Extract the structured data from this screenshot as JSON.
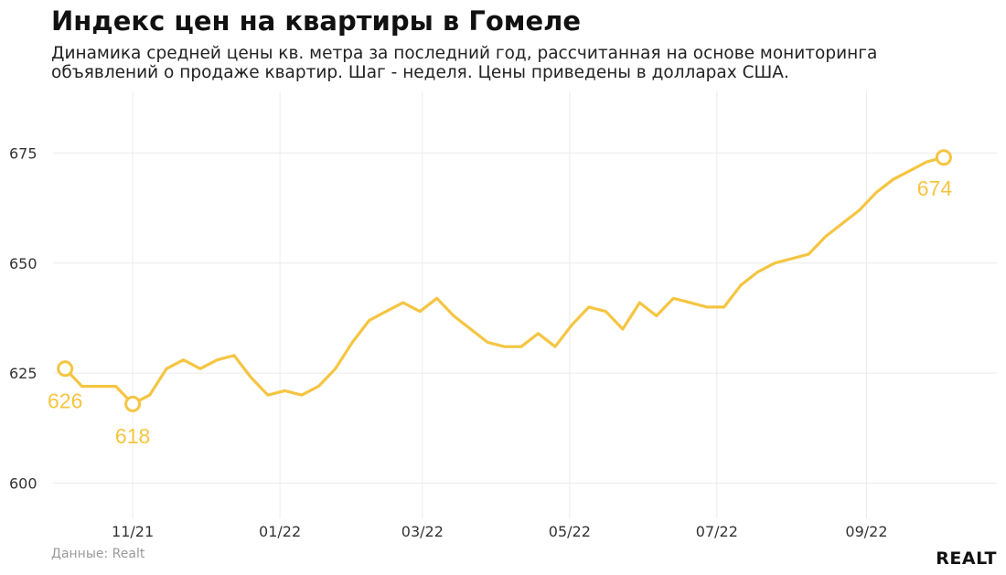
{
  "title": "Индекс цен на квартиры в Гомеле",
  "subtitle": "Динамика средней цены кв. метра за последний год, рассчитанная на основе мониторинга объявлений о продаже квартир. Шаг - неделя. Цены приведены в долларах США.",
  "source": "Данные: Realt",
  "logo": "REALT",
  "colors": {
    "line": "#f5c542",
    "grid": "#ececec",
    "text": "#333333"
  },
  "chart_data": {
    "type": "line",
    "title": "Индекс цен на квартиры в Гомеле",
    "xlabel": "",
    "ylabel": "",
    "ylim": [
      592,
      689
    ],
    "xlim": [
      "2021-09-29",
      "2022-10-25"
    ],
    "grid": true,
    "yticks": [
      600,
      625,
      650,
      675
    ],
    "yticklabels": [
      "600",
      "625",
      "650",
      "675"
    ],
    "xticks": [
      "2021-11-01",
      "2022-01-01",
      "2022-03-01",
      "2022-05-01",
      "2022-07-01",
      "2022-09-01"
    ],
    "xticklabels": [
      "11/21",
      "01/22",
      "03/22",
      "05/22",
      "07/22",
      "09/22"
    ],
    "series": [
      {
        "x": [
          "2021-10-04",
          "2021-10-11",
          "2021-10-18",
          "2021-10-25",
          "2021-11-01",
          "2021-11-08",
          "2021-11-15",
          "2021-11-22",
          "2021-11-29",
          "2021-12-06",
          "2021-12-13",
          "2021-12-20",
          "2021-12-27",
          "2022-01-03",
          "2022-01-10",
          "2022-01-17",
          "2022-01-24",
          "2022-01-31",
          "2022-02-07",
          "2022-02-14",
          "2022-02-21",
          "2022-02-28",
          "2022-03-07",
          "2022-03-14",
          "2022-03-21",
          "2022-03-28",
          "2022-04-04",
          "2022-04-11",
          "2022-04-18",
          "2022-04-25",
          "2022-05-02",
          "2022-05-09",
          "2022-05-16",
          "2022-05-23",
          "2022-05-30",
          "2022-06-06",
          "2022-06-13",
          "2022-06-20",
          "2022-06-27",
          "2022-07-04",
          "2022-07-11",
          "2022-07-18",
          "2022-07-25",
          "2022-08-01",
          "2022-08-08",
          "2022-08-15",
          "2022-08-22",
          "2022-08-29",
          "2022-09-05",
          "2022-09-12",
          "2022-09-19",
          "2022-09-26",
          "2022-10-03"
        ],
        "y": [
          626,
          622,
          622,
          622,
          618,
          620,
          626,
          628,
          626,
          628,
          629,
          624,
          620,
          621,
          620,
          622,
          626,
          632,
          637,
          639,
          641,
          639,
          642,
          638,
          635,
          632,
          631,
          631,
          634,
          631,
          636,
          640,
          639,
          635,
          641,
          638,
          642,
          641,
          640,
          640,
          645,
          648,
          650,
          651,
          652,
          656,
          659,
          662,
          666,
          669,
          671,
          673,
          674
        ]
      }
    ],
    "annotations": [
      {
        "x": "2021-10-04",
        "y": 626,
        "label": "626"
      },
      {
        "x": "2021-11-01",
        "y": 618,
        "label": "618"
      },
      {
        "x": "2022-10-03",
        "y": 674,
        "label": "674"
      }
    ]
  }
}
